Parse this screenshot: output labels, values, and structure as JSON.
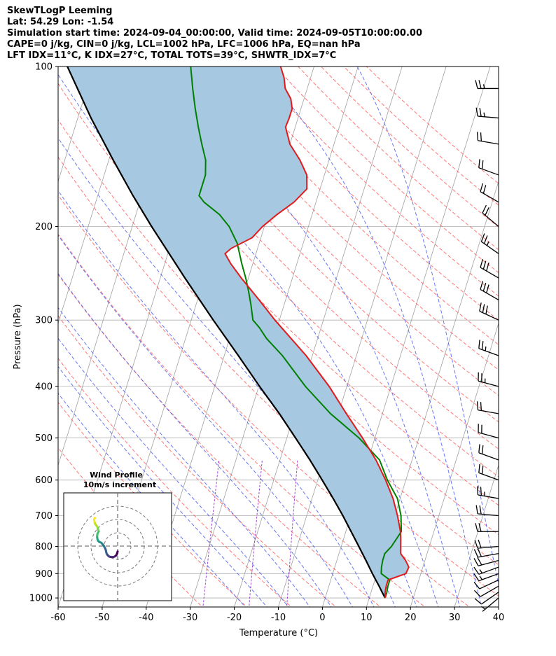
{
  "chart_data": {
    "type": "skewt-logp",
    "header": {
      "line1": "SkewTLogP Leeming",
      "line2": "Lat: 54.29   Lon: -1.54",
      "line3": "Simulation start time: 2024-09-04_00:00:00, Valid time: 2024-09-05T10:00:00.00",
      "line4": "CAPE=0 j/kg, CIN=0 j/kg, LCL=1002 hPa, LFC=1006 hPa, EQ=nan hPa",
      "line5": "LFT IDX=11°C, K IDX=27°C, TOTAL TOTS=39°C, SHWTR_IDX=7°C"
    },
    "xlabel": "Temperature (°C)",
    "ylabel": "Pressure (hPa)",
    "xlim": [
      -60,
      40
    ],
    "plim": [
      1040,
      100
    ],
    "x_ticks": [
      "-60",
      "-50",
      "-40",
      "-30",
      "-20",
      "-10",
      "0",
      "10",
      "20",
      "30",
      "40"
    ],
    "x_tick_values": [
      -60,
      -50,
      -40,
      -30,
      -20,
      -10,
      0,
      10,
      20,
      30,
      40
    ],
    "p_ticks": [
      "1000",
      "900",
      "800",
      "700",
      "600",
      "500",
      "400",
      "300",
      "200",
      "100"
    ],
    "p_tick_values": [
      1000,
      900,
      800,
      700,
      600,
      500,
      400,
      300,
      200,
      100
    ],
    "temperature": {
      "color": "#e31a1c",
      "p": [
        1000,
        975,
        950,
        925,
        900,
        875,
        850,
        825,
        800,
        775,
        750,
        700,
        650,
        600,
        550,
        500,
        450,
        400,
        350,
        300,
        275,
        250,
        235,
        225,
        220,
        210,
        200,
        190,
        180,
        170,
        160,
        150,
        140,
        130,
        125,
        120,
        115,
        110,
        105,
        100
      ],
      "t": [
        13.6,
        13.2,
        13.0,
        13.0,
        16.6,
        16.8,
        15.6,
        14.0,
        13.5,
        13.0,
        12.4,
        10.6,
        8.4,
        5.4,
        1.8,
        -2.8,
        -8.2,
        -14.0,
        -21.4,
        -31.0,
        -36.0,
        -41.6,
        -45.0,
        -47.0,
        -46.0,
        -42.0,
        -40.4,
        -38.0,
        -35.0,
        -33.0,
        -34.0,
        -36.6,
        -40.0,
        -42.2,
        -42.0,
        -42.0,
        -43.0,
        -45.0,
        -46.0,
        -47.6
      ]
    },
    "dewpoint": {
      "color": "#008000",
      "p": [
        1000,
        975,
        950,
        925,
        900,
        875,
        850,
        825,
        800,
        775,
        750,
        700,
        650,
        600,
        550,
        500,
        450,
        400,
        350,
        325,
        310,
        300,
        280,
        265,
        250,
        235,
        215,
        200,
        190,
        180,
        175,
        170,
        160,
        150,
        140,
        130,
        120,
        110,
        100
      ],
      "t": [
        13.6,
        13.6,
        13.4,
        13.4,
        11.0,
        10.6,
        10.4,
        10.4,
        11.4,
        12.0,
        12.6,
        11.4,
        9.4,
        5.8,
        2.6,
        -3.6,
        -11.8,
        -19.4,
        -26.8,
        -31.6,
        -34.0,
        -36.0,
        -37.6,
        -39.0,
        -40.6,
        -42.5,
        -45.0,
        -48.0,
        -51.0,
        -55.4,
        -57.0,
        -57.0,
        -57.0,
        -58.0,
        -60.0,
        -62.0,
        -64.0,
        -66.0,
        -68.0
      ]
    },
    "parcel": {
      "color": "#000000",
      "p": [
        1000,
        975,
        950,
        925,
        900,
        850,
        800,
        750,
        700,
        650,
        600,
        550,
        500,
        450,
        400,
        350,
        300,
        250,
        200,
        175,
        150,
        125,
        100
      ],
      "t": [
        13.6,
        12.5,
        11.4,
        10.2,
        9.0,
        6.6,
        4.0,
        1.2,
        -1.8,
        -5.2,
        -9.0,
        -13.2,
        -18.0,
        -23.4,
        -29.8,
        -36.8,
        -45.0,
        -54.4,
        -65.6,
        -72.0,
        -79.0,
        -87.0,
        -96.0
      ]
    },
    "cape_shading_color": "#a6c8e0",
    "dry_adiabat_color": "#ff5555",
    "moist_adiabat_color": "#4455ee",
    "mixing_ratio_color": "#9933cc",
    "isotherm_color": "#a0a0a0",
    "wind_barbs": {
      "p": [
        1000,
        975,
        950,
        925,
        900,
        875,
        850,
        825,
        800,
        750,
        700,
        650,
        600,
        550,
        500,
        450,
        400,
        350,
        300,
        275,
        250,
        225,
        200,
        180,
        160,
        140,
        125,
        110
      ],
      "speed_kt": [
        5,
        8,
        10,
        12,
        15,
        17,
        18,
        20,
        20,
        20,
        22,
        24,
        20,
        18,
        20,
        22,
        25,
        27,
        28,
        30,
        30,
        25,
        20,
        22,
        20,
        22,
        25,
        25
      ],
      "dir_deg": [
        230,
        235,
        240,
        245,
        250,
        250,
        255,
        260,
        265,
        270,
        275,
        280,
        290,
        290,
        285,
        280,
        285,
        290,
        295,
        300,
        300,
        305,
        310,
        300,
        290,
        280,
        275,
        270
      ]
    },
    "hodograph": {
      "title": "Wind Profile",
      "subtitle": "10m/s increment",
      "u": [
        0.0,
        -0.3,
        -0.8,
        -1.5,
        -2.3,
        -3.2,
        -4.3,
        -5.5,
        -6.5,
        -7.2,
        -7.8,
        -8.3,
        -8.6,
        -8.9,
        -9.3,
        -9.9,
        -10.5,
        -11.4,
        -12.3,
        -13.2,
        -14.0,
        -14.6,
        -15.0,
        -15.2,
        -15.4,
        -15.4,
        -15.2,
        -14.6,
        -14.2,
        -14.5,
        -14.8,
        -15.0,
        -15.5,
        -16.1,
        -16.8,
        -17.1,
        -17.4,
        -17.6,
        -17.6,
        -17.3,
        -17.0
      ],
      "v": [
        -4.0,
        -5.2,
        -6.5,
        -7.4,
        -7.9,
        -8.2,
        -8.3,
        -8.1,
        -7.8,
        -7.1,
        -6.4,
        -5.6,
        -4.4,
        -3.0,
        -1.8,
        -0.8,
        0.4,
        1.5,
        2.5,
        2.9,
        3.3,
        3.9,
        4.6,
        5.5,
        6.7,
        7.8,
        9.2,
        10.3,
        11.2,
        12.0,
        13.0,
        14.0,
        14.8,
        15.6,
        16.4,
        17.4,
        18.4,
        19.4,
        20.2,
        20.8,
        21.2
      ],
      "rings_ms": [
        10,
        20,
        30
      ]
    }
  }
}
